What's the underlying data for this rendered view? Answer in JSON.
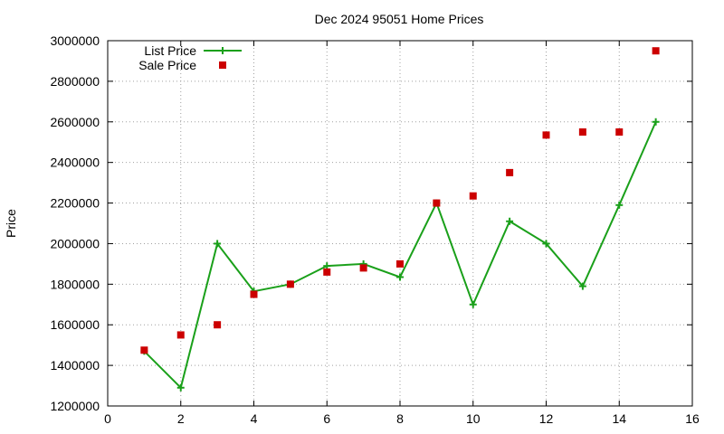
{
  "chart_data": {
    "type": "line",
    "title": "Dec 2024 95051 Home Prices",
    "xlabel": "",
    "ylabel": "Price",
    "xlim": [
      0,
      16
    ],
    "ylim": [
      1200000,
      3000000
    ],
    "xticks": [
      0,
      2,
      4,
      6,
      8,
      10,
      12,
      14,
      16
    ],
    "yticks": [
      1200000,
      1400000,
      1600000,
      1800000,
      2000000,
      2200000,
      2400000,
      2600000,
      2800000,
      3000000
    ],
    "grid": true,
    "legend_position": "top-left",
    "series": [
      {
        "name": "List Price",
        "style": "line-plus",
        "color": "#1aa01a",
        "x": [
          1,
          2,
          3,
          4,
          5,
          6,
          7,
          8,
          9,
          10,
          11,
          12,
          13,
          14,
          15
        ],
        "y": [
          1470000,
          1290000,
          2000000,
          1765000,
          1800000,
          1890000,
          1900000,
          1835000,
          2200000,
          1700000,
          2110000,
          2000000,
          1790000,
          2190000,
          2600000
        ]
      },
      {
        "name": "Sale Price",
        "style": "square",
        "color": "#cc0000",
        "x": [
          1,
          2,
          3,
          4,
          5,
          6,
          7,
          8,
          9,
          10,
          11,
          12,
          13,
          14,
          15
        ],
        "y": [
          1475000,
          1550000,
          1600000,
          1750000,
          1800000,
          1860000,
          1880000,
          1900000,
          2200000,
          2235000,
          2350000,
          2535000,
          2550000,
          2550000,
          2950000
        ]
      }
    ]
  }
}
